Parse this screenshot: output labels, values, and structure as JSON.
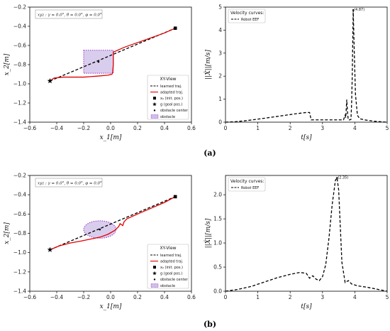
{
  "chart_data": [
    {
      "type": "line",
      "panel": "a",
      "xlabel": "x_1[m]",
      "ylabel": "x_2[m]",
      "xlim": [
        -0.6,
        0.6
      ],
      "ylim": [
        -1.4,
        -0.2
      ],
      "xticks": [
        "−0.6",
        "−0.4",
        "−0.2",
        "0.0",
        "0.2",
        "0.4",
        "0.6"
      ],
      "yticks": [
        "−0.2",
        "−0.4",
        "−0.6",
        "−0.8",
        "−1.0",
        "−1.2",
        "−1.4"
      ],
      "info": "xyz : γ = 0.0°, θ = 0.0°, φ = 0.0°",
      "legend_title": "XY-View",
      "legend": [
        "learned traj.",
        "adapted traj.",
        "x₀ (init. pos.)",
        "g (goal pos.)",
        "obstacle center",
        "obstacle"
      ],
      "obstacle": {
        "shape": "rectangle",
        "x_range": [
          -0.2,
          0.02
        ],
        "y_range": [
          -0.89,
          -0.65
        ],
        "center": [
          -0.09,
          -0.77
        ]
      },
      "series": [
        {
          "name": "learned traj.",
          "x": [
            -0.45,
            0.48
          ],
          "y": [
            -0.97,
            -0.42
          ]
        },
        {
          "name": "adapted traj.",
          "x": [
            -0.45,
            -0.42,
            -0.35,
            -0.2,
            -0.1,
            -0.02,
            0.01,
            0.015,
            0.02,
            0.02,
            0.1,
            0.2,
            0.3,
            0.4,
            0.48
          ],
          "y": [
            -0.97,
            -0.94,
            -0.93,
            -0.93,
            -0.92,
            -0.91,
            -0.9,
            -0.88,
            -0.8,
            -0.67,
            -0.62,
            -0.57,
            -0.52,
            -0.47,
            -0.42
          ]
        }
      ],
      "start": [
        -0.45,
        -0.97
      ],
      "goal": [
        0.48,
        -0.42
      ]
    },
    {
      "type": "line",
      "panel": "a",
      "xlabel": "t[s]",
      "ylabel": "||Ẋ||[m/s]",
      "xlim": [
        0,
        5
      ],
      "ylim": [
        0,
        5
      ],
      "xticks": [
        "0",
        "1",
        "2",
        "3",
        "4",
        "5"
      ],
      "yticks": [
        "0",
        "1",
        "2",
        "3",
        "4",
        "5"
      ],
      "legend_title": "Velocity curves:",
      "legend": [
        "Robot EEF"
      ],
      "peak_label": "(4.87)",
      "peak": [
        3.95,
        4.87
      ],
      "series": [
        {
          "name": "Robot EEF",
          "x": [
            0,
            0.3,
            0.6,
            1.0,
            1.4,
            1.8,
            2.2,
            2.5,
            2.6,
            2.65,
            3.0,
            3.3,
            3.65,
            3.7,
            3.72,
            3.75,
            3.78,
            3.8,
            3.82,
            3.85,
            3.88,
            3.9,
            3.92,
            3.95,
            3.98,
            4.02,
            4.08,
            4.15,
            4.3,
            4.6,
            5.0
          ],
          "y": [
            0,
            0.02,
            0.06,
            0.13,
            0.21,
            0.29,
            0.37,
            0.42,
            0.42,
            0.1,
            0.1,
            0.1,
            0.1,
            0.3,
            0.2,
            0.98,
            0.3,
            0.1,
            0.1,
            0.1,
            0.12,
            0.8,
            2.0,
            4.87,
            3.2,
            1.2,
            0.3,
            0.15,
            0.1,
            0.04,
            0.0
          ]
        }
      ]
    },
    {
      "type": "line",
      "panel": "b",
      "xlabel": "x_1[m]",
      "ylabel": "x_2[m]",
      "xlim": [
        -0.6,
        0.6
      ],
      "ylim": [
        -1.4,
        -0.2
      ],
      "xticks": [
        "−0.6",
        "−0.4",
        "−0.2",
        "0.0",
        "0.2",
        "0.4",
        "0.6"
      ],
      "yticks": [
        "−0.2",
        "−0.4",
        "−0.6",
        "−0.8",
        "−1.0",
        "−1.2",
        "−1.4"
      ],
      "info": "xyz : γ = 0.0°, θ = 0.0°, φ = 0.0°",
      "legend_title": "XY-View",
      "legend": [
        "learned traj.",
        "adapted traj.",
        "x₀ (init. pos.)",
        "g (goal pos.)",
        "obstacle center",
        "obstacle"
      ],
      "obstacle": {
        "shape": "ellipse",
        "center": [
          -0.08,
          -0.76
        ],
        "rx": 0.12,
        "ry": 0.09
      },
      "series": [
        {
          "name": "learned traj.",
          "x": [
            -0.45,
            0.48
          ],
          "y": [
            -0.97,
            -0.42
          ]
        },
        {
          "name": "adapted traj.",
          "x": [
            -0.45,
            -0.38,
            -0.3,
            -0.22,
            -0.15,
            -0.08,
            -0.02,
            0.03,
            0.06,
            0.07,
            0.09,
            0.1,
            0.12,
            0.2,
            0.3,
            0.4,
            0.48
          ],
          "y": [
            -0.97,
            -0.93,
            -0.9,
            -0.88,
            -0.86,
            -0.84,
            -0.81,
            -0.77,
            -0.73,
            -0.7,
            -0.72,
            -0.68,
            -0.65,
            -0.6,
            -0.54,
            -0.48,
            -0.42
          ]
        }
      ],
      "start": [
        -0.45,
        -0.97
      ],
      "goal": [
        0.48,
        -0.42
      ]
    },
    {
      "type": "line",
      "panel": "b",
      "xlabel": "t[s]",
      "ylabel": "||Ẋ||[m/s]",
      "xlim": [
        0,
        5
      ],
      "ylim": [
        0,
        2.4
      ],
      "xticks": [
        "0",
        "1",
        "2",
        "3",
        "4",
        "5"
      ],
      "yticks": [
        "0.0",
        "0.5",
        "1.0",
        "1.5",
        "2.0"
      ],
      "legend_title": "Velocity curves:",
      "legend": [
        "Robot EEF"
      ],
      "peak_label": "(2.35)",
      "peak": [
        3.45,
        2.35
      ],
      "series": [
        {
          "name": "Robot EEF",
          "x": [
            0,
            0.4,
            0.8,
            1.2,
            1.6,
            2.0,
            2.3,
            2.5,
            2.6,
            2.7,
            2.8,
            2.9,
            3.0,
            3.1,
            3.2,
            3.3,
            3.4,
            3.45,
            3.5,
            3.6,
            3.7,
            3.8,
            3.9,
            4.1,
            4.4,
            4.7,
            5.0
          ],
          "y": [
            0,
            0.04,
            0.1,
            0.19,
            0.28,
            0.35,
            0.39,
            0.37,
            0.27,
            0.32,
            0.25,
            0.22,
            0.3,
            0.55,
            1.1,
            1.8,
            2.3,
            2.35,
            2.1,
            0.6,
            0.18,
            0.22,
            0.15,
            0.11,
            0.08,
            0.04,
            0.0
          ]
        }
      ]
    }
  ],
  "captions": {
    "a": "(a)",
    "b": "(b)"
  }
}
